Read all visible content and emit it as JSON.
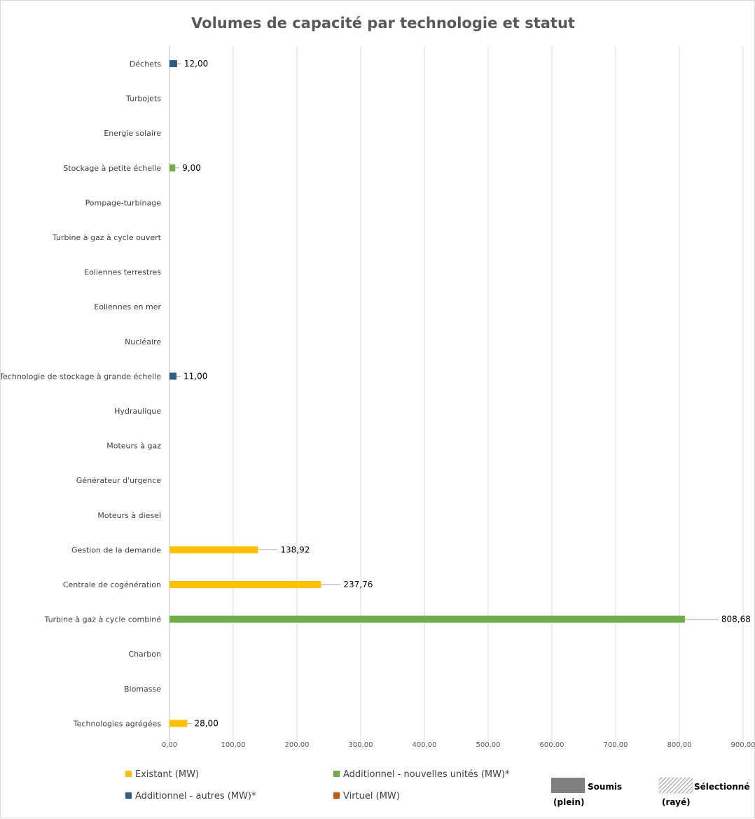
{
  "chart_data": {
    "type": "bar",
    "orientation": "horizontal",
    "title": "Volumes de capacité par technologie et statut",
    "categories": [
      "Déchets",
      "Turbojets",
      "Energie solaire",
      "Stockage à petite échelle",
      "Pompage-turbinage",
      "Turbine à gaz à cycle ouvert",
      "Eoliennes terrestres",
      "Eoliennes en mer",
      "Nucléaire",
      "Technologie de stockage à grande échelle",
      "Hydraulique",
      "Moteurs à gaz",
      "Générateur d'urgence",
      "Moteurs à diesel",
      "Gestion de la demande",
      "Centrale de cogénération",
      "Turbine à gaz à cycle combiné",
      "Charbon",
      "Biomasse",
      "Technologies agrégées"
    ],
    "series": [
      {
        "name": "Existant (MW)",
        "color": "#FFC000",
        "values": [
          null,
          null,
          null,
          null,
          null,
          null,
          null,
          null,
          null,
          null,
          null,
          null,
          null,
          null,
          138.92,
          237.76,
          null,
          null,
          null,
          28.0
        ]
      },
      {
        "name": "Additionnel - nouvelles unités (MW)*",
        "color": "#70AD47",
        "values": [
          null,
          null,
          null,
          9.0,
          null,
          null,
          null,
          null,
          null,
          null,
          null,
          null,
          null,
          null,
          null,
          null,
          808.68,
          null,
          null,
          null
        ]
      },
      {
        "name": "Additionnel - autres (MW)*",
        "color": "#2E5C8A",
        "values": [
          12.0,
          null,
          null,
          null,
          null,
          null,
          null,
          null,
          null,
          11.0,
          null,
          null,
          null,
          null,
          null,
          null,
          null,
          null,
          null,
          null
        ]
      },
      {
        "name": "Virtuel (MW)",
        "color": "#C55A11",
        "values": [
          null,
          null,
          null,
          null,
          null,
          null,
          null,
          null,
          null,
          null,
          null,
          null,
          null,
          null,
          null,
          null,
          null,
          null,
          null,
          null
        ]
      }
    ],
    "data_labels": [
      "12,00",
      "9,00",
      "11,00",
      "138,92",
      "237,76",
      "808,68",
      "28,00"
    ],
    "xlim": [
      0,
      900
    ],
    "xticks": [
      0,
      100,
      200,
      300,
      400,
      500,
      600,
      700,
      800,
      900
    ],
    "xtick_labels": [
      "0,00",
      "100,00",
      "200,00",
      "300,00",
      "400,00",
      "500,00",
      "600,00",
      "700,00",
      "800,00",
      "900,00"
    ],
    "grid": "vertical",
    "legend_position": "bottom",
    "style_legend": [
      {
        "label": "Soumis",
        "sub": "(plein)",
        "pattern": "solid",
        "color": "#808080"
      },
      {
        "label": "Sélectionné",
        "sub": "(rayé)",
        "pattern": "hatched",
        "color": "#808080"
      }
    ]
  }
}
